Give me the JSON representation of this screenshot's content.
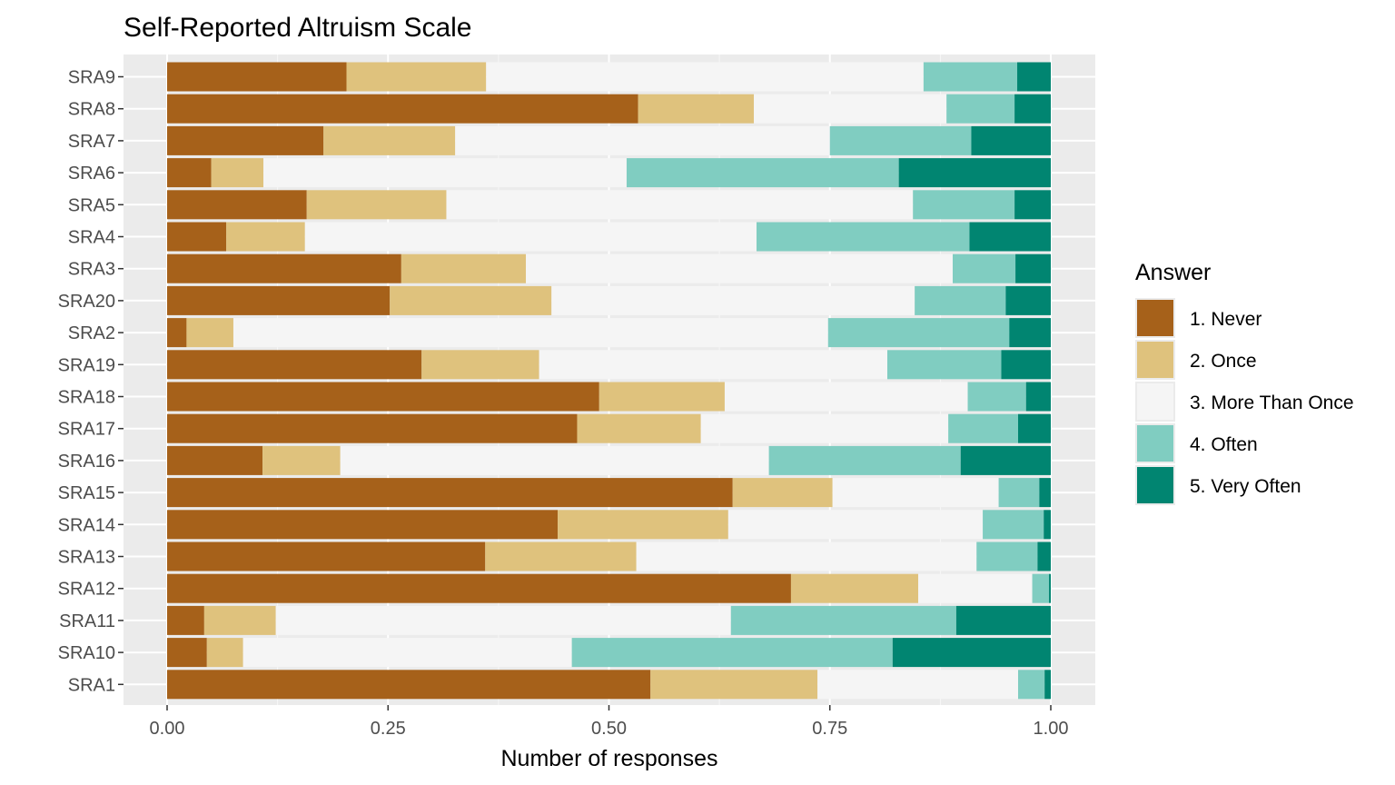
{
  "chart_data": {
    "type": "bar",
    "orientation": "horizontal",
    "stacked": true,
    "title": "Self-Reported Altruism Scale",
    "xlabel": "Number of responses",
    "ylabel": "",
    "xlim": [
      0,
      1
    ],
    "x_ticks": [
      "0.00",
      "0.25",
      "0.50",
      "0.75",
      "1.00"
    ],
    "grid": true,
    "legend": {
      "title": "Answer",
      "position": "right"
    },
    "categories": [
      "SRA9",
      "SRA8",
      "SRA7",
      "SRA6",
      "SRA5",
      "SRA4",
      "SRA3",
      "SRA20",
      "SRA2",
      "SRA19",
      "SRA18",
      "SRA17",
      "SRA16",
      "SRA15",
      "SRA14",
      "SRA13",
      "SRA12",
      "SRA11",
      "SRA10",
      "SRA1"
    ],
    "series": [
      {
        "name": "1. Never",
        "color": "#a6611a",
        "values": [
          0.203,
          0.533,
          0.177,
          0.05,
          0.158,
          0.067,
          0.265,
          0.252,
          0.022,
          0.288,
          0.489,
          0.464,
          0.108,
          0.64,
          0.442,
          0.36,
          0.706,
          0.042,
          0.045,
          0.547
        ]
      },
      {
        "name": "2. Once",
        "color": "#dfc27d",
        "values": [
          0.158,
          0.131,
          0.149,
          0.059,
          0.158,
          0.089,
          0.141,
          0.183,
          0.053,
          0.133,
          0.142,
          0.14,
          0.088,
          0.113,
          0.193,
          0.171,
          0.144,
          0.081,
          0.041,
          0.189
        ]
      },
      {
        "name": "3. More Than Once",
        "color": "#f5f5f5",
        "values": [
          0.495,
          0.218,
          0.424,
          0.411,
          0.528,
          0.511,
          0.483,
          0.411,
          0.673,
          0.394,
          0.275,
          0.28,
          0.485,
          0.188,
          0.288,
          0.385,
          0.129,
          0.515,
          0.372,
          0.227
        ]
      },
      {
        "name": "4. Often",
        "color": "#80cdc1",
        "values": [
          0.106,
          0.077,
          0.16,
          0.308,
          0.115,
          0.241,
          0.071,
          0.103,
          0.205,
          0.129,
          0.066,
          0.079,
          0.217,
          0.046,
          0.069,
          0.069,
          0.019,
          0.255,
          0.363,
          0.03
        ]
      },
      {
        "name": "5. Very Often",
        "color": "#018571",
        "values": [
          0.038,
          0.041,
          0.09,
          0.172,
          0.041,
          0.092,
          0.04,
          0.051,
          0.047,
          0.056,
          0.028,
          0.037,
          0.102,
          0.013,
          0.008,
          0.015,
          0.002,
          0.107,
          0.179,
          0.007
        ]
      }
    ]
  }
}
